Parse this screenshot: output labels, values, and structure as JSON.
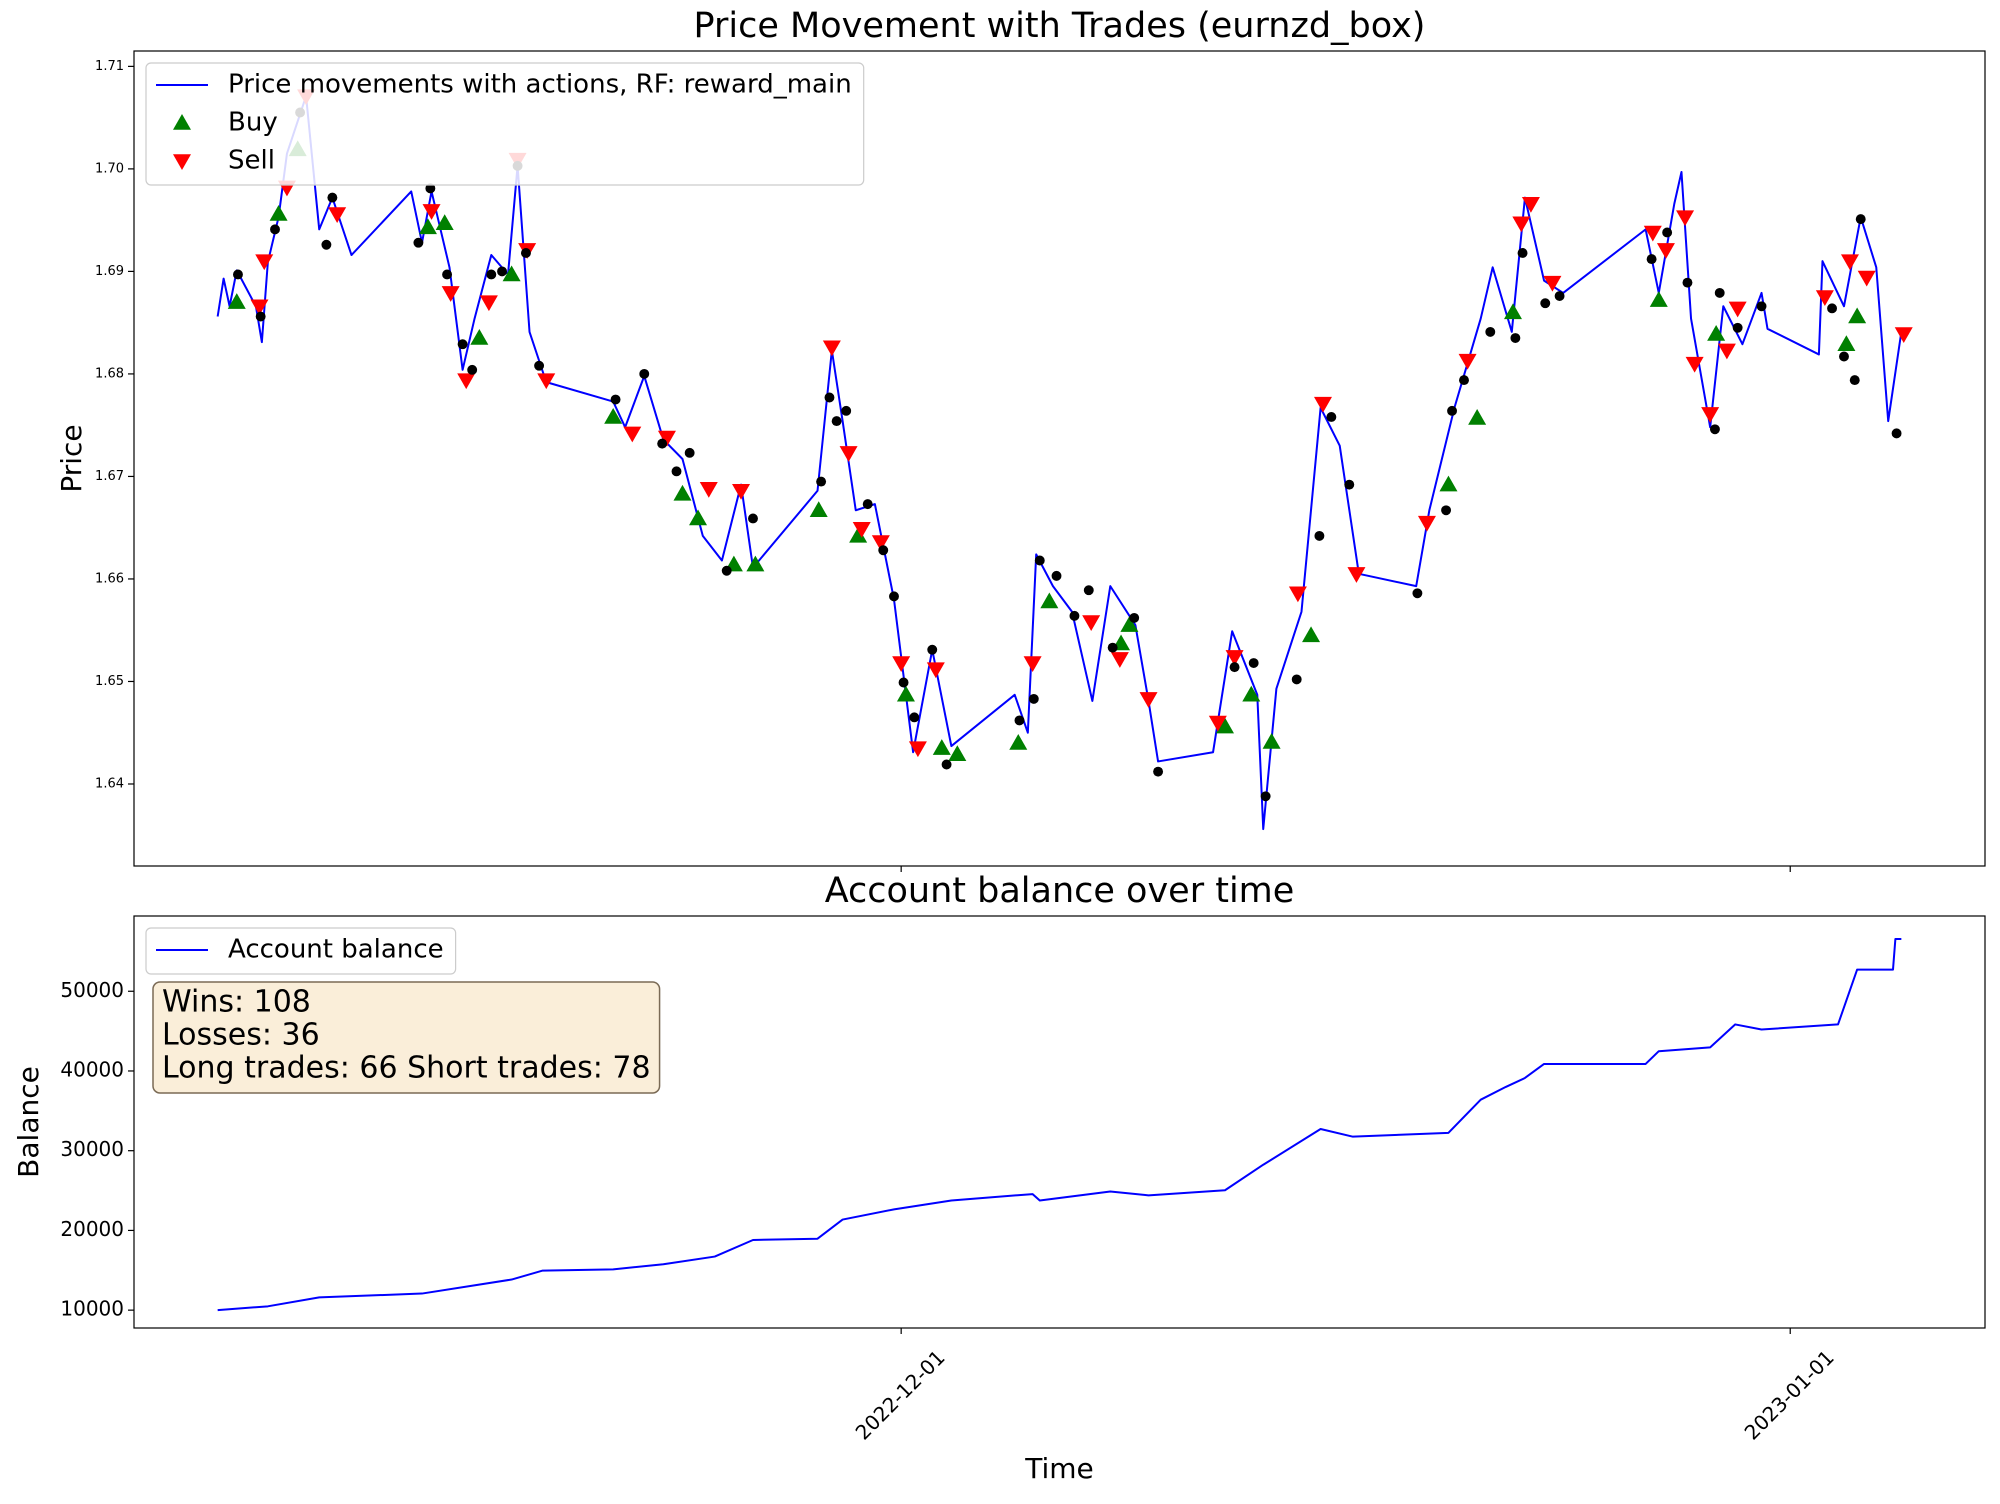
{
  "chart_data": [
    {
      "type": "line",
      "title": "Price Movement with Trades (eurnzd_box)",
      "y_label": "Price",
      "xlim": [
        "2022-11-04 06:00",
        "2023-01-07 19:00"
      ],
      "ylim": [
        1.632,
        1.7115
      ],
      "yticks": [
        1.64,
        1.65,
        1.66,
        1.67,
        1.68,
        1.69,
        {
          "value": 1.7,
          "label": "1.70"
        },
        1.71
      ],
      "legend": "upper left",
      "series": [
        {
          "name": "Price movements with actions, RF: reward_main",
          "color": "#0000ff",
          "x": [
            "2022-11-07 04:00",
            "2022-11-07 09:00",
            "2022-11-07 14:00",
            "2022-11-07 20:00",
            "2022-11-08 12:00",
            "2022-11-08 17:00",
            "2022-11-08 22:00",
            "2022-11-09 07:00",
            "2022-11-09 14:00",
            "2022-11-10 06:00",
            "2022-11-10 17:00",
            "2022-11-11 04:00",
            "2022-11-11 20:00",
            "2022-11-13 22:00",
            "2022-11-14 07:00",
            "2022-11-14 15:00",
            "2022-11-15 06:00",
            "2022-11-15 17:00",
            "2022-11-16 03:00",
            "2022-11-16 17:00",
            "2022-11-17 07:00",
            "2022-11-17 15:00",
            "2022-11-18 01:00",
            "2022-11-18 15:00",
            "2022-11-20 23:00",
            "2022-11-21 09:00",
            "2022-11-22 01:00",
            "2022-11-22 17:00",
            "2022-11-23 09:00",
            "2022-11-24 02:00",
            "2022-11-24 18:00",
            "2022-11-25 10:00",
            "2022-11-25 20:00",
            "2022-11-28 02:00",
            "2022-11-28 14:00",
            "2022-11-28 23:00",
            "2022-11-29 10:00",
            "2022-11-30 02:00",
            "2022-11-30 18:00",
            "2022-12-01 10:00",
            "2022-12-02 02:00",
            "2022-12-02 18:00",
            "2022-12-04 23:00",
            "2022-12-05 10:00",
            "2022-12-05 17:00",
            "2022-12-06 07:00",
            "2022-12-06 23:00",
            "2022-12-07 16:00",
            "2022-12-08 07:00",
            "2022-12-09 04:00",
            "2022-12-09 15:00",
            "2022-12-09 23:00",
            "2022-12-11 21:00",
            "2022-12-12 13:00",
            "2022-12-13 10:00",
            "2022-12-13 15:00",
            "2022-12-14 02:00",
            "2022-12-14 23:00",
            "2022-12-15 15:00",
            "2022-12-16 07:00",
            "2022-12-16 23:00",
            "2022-12-18 23:00",
            "2022-12-19 10:00",
            "2022-12-20 07:00",
            "2022-12-21 05:00",
            "2022-12-21 15:00",
            "2022-12-22 07:00",
            "2022-12-22 18:00",
            "2022-12-23 10:00",
            "2022-12-24 02:00",
            "2022-12-26 23:00",
            "2022-12-27 10:00",
            "2022-12-27 23:00",
            "2022-12-28 05:00",
            "2022-12-28 13:00",
            "2022-12-29 05:00",
            "2022-12-29 16:00",
            "2022-12-30 08:00",
            "2022-12-31 00:00",
            "2022-12-31 05:00",
            "2023-01-02 00:00",
            "2023-01-02 03:00",
            "2023-01-02 21:00",
            "2023-01-03 11:00",
            "2023-01-04 00:00",
            "2023-01-04 10:00",
            "2023-01-04 21:00"
          ],
          "values": [
            1.6856,
            1.6893,
            1.6866,
            1.6901,
            1.6866,
            1.6831,
            1.6909,
            1.6953,
            1.7015,
            1.7071,
            1.6941,
            1.6972,
            1.6916,
            1.6978,
            1.6928,
            1.6978,
            1.6904,
            1.6804,
            1.6854,
            1.6916,
            1.6897,
            1.7003,
            1.6841,
            1.6792,
            1.6773,
            1.6748,
            1.6798,
            1.6736,
            1.6717,
            1.6642,
            1.6618,
            1.6692,
            1.6611,
            1.6686,
            1.6823,
            1.6754,
            1.6667,
            1.6673,
            1.658,
            1.6431,
            1.6531,
            1.6437,
            1.6487,
            1.645,
            1.6624,
            1.6593,
            1.6568,
            1.6481,
            1.6593,
            1.6555,
            1.6481,
            1.6422,
            1.6431,
            1.6549,
            1.6487,
            1.6356,
            1.6493,
            1.6568,
            1.6767,
            1.673,
            1.6605,
            1.6593,
            1.6667,
            1.6767,
            1.6854,
            1.6904,
            1.6841,
            1.6972,
            1.6891,
            1.6879,
            1.6941,
            1.6879,
            1.6966,
            1.6997,
            1.6854,
            1.6748,
            1.6866,
            1.6829,
            1.6879,
            1.6844,
            1.6819,
            1.691,
            1.6866,
            1.6953,
            1.6904,
            1.6754,
            1.6841
          ]
        },
        {
          "name": "Buy",
          "color": "#008000",
          "marker": "triangle-up",
          "x": [
            "2022-11-07 20:00",
            "2022-11-09 07:00",
            "2022-11-09 23:00",
            "2022-11-14 12:00",
            "2022-11-15 02:00",
            "2022-11-16 07:00",
            "2022-11-17 10:00",
            "2022-11-20 23:00",
            "2022-11-23 09:00",
            "2022-11-23 22:00",
            "2022-11-25 04:00",
            "2022-11-25 22:00",
            "2022-11-28 03:00",
            "2022-11-29 12:00",
            "2022-12-01 04:00",
            "2022-12-02 10:00",
            "2022-12-02 23:00",
            "2022-12-05 02:00",
            "2022-12-06 04:00",
            "2022-12-08 16:00",
            "2022-12-08 23:00",
            "2022-12-12 07:00",
            "2022-12-13 05:00",
            "2022-12-13 22:00",
            "2022-12-15 07:00",
            "2022-12-20 02:00",
            "2022-12-21 02:00",
            "2022-12-22 08:00",
            "2022-12-27 10:00",
            "2022-12-29 10:00",
            "2023-01-02 23:00",
            "2023-01-03 08:00"
          ],
          "values": [
            1.687,
            1.6956,
            1.7019,
            1.6943,
            1.6947,
            1.6835,
            1.6897,
            1.6758,
            1.6683,
            1.6659,
            1.6614,
            1.6614,
            1.6667,
            1.6642,
            1.6487,
            1.6435,
            1.6429,
            1.644,
            1.6578,
            1.6537,
            1.6555,
            1.6456,
            1.6487,
            1.6441,
            1.6545,
            1.6692,
            1.6757,
            1.686,
            1.6872,
            1.6839,
            1.6829,
            1.6856
          ]
        },
        {
          "name": "Sell",
          "color": "#ff0000",
          "marker": "triangle-down",
          "x": [
            "2022-11-08 15:00",
            "2022-11-08 19:00",
            "2022-11-09 14:00",
            "2022-11-10 06:00",
            "2022-11-11 08:00",
            "2022-11-14 15:00",
            "2022-11-15 07:00",
            "2022-11-15 20:00",
            "2022-11-16 15:00",
            "2022-11-17 15:00",
            "2022-11-17 23:00",
            "2022-11-18 15:00",
            "2022-11-21 15:00",
            "2022-11-22 20:00",
            "2022-11-24 07:00",
            "2022-11-25 10:00",
            "2022-11-28 14:00",
            "2022-11-29 04:00",
            "2022-11-29 15:00",
            "2022-11-30 07:00",
            "2022-12-01 00:00",
            "2022-12-01 14:00",
            "2022-12-02 05:00",
            "2022-12-05 14:00",
            "2022-12-07 15:00",
            "2022-12-08 15:00",
            "2022-12-09 15:00",
            "2022-12-12 01:00",
            "2022-12-12 15:00",
            "2022-12-14 20:00",
            "2022-12-15 17:00",
            "2022-12-16 21:00",
            "2022-12-19 08:00",
            "2022-12-20 18:00",
            "2022-12-22 15:00",
            "2022-12-22 23:00",
            "2022-12-23 17:00",
            "2022-12-27 05:00",
            "2022-12-27 16:00",
            "2022-12-28 08:00",
            "2022-12-28 16:00",
            "2022-12-29 05:00",
            "2022-12-29 19:00",
            "2022-12-30 04:00",
            "2023-01-02 05:00",
            "2023-01-03 02:00",
            "2023-01-03 16:00",
            "2023-01-04 23:00"
          ],
          "values": [
            1.6866,
            1.691,
            1.6982,
            1.7071,
            1.6956,
            1.6959,
            1.6879,
            1.6794,
            1.687,
            1.7009,
            1.6921,
            1.6794,
            1.6742,
            1.6738,
            1.6688,
            1.6686,
            1.6826,
            1.6723,
            1.6649,
            1.6636,
            1.6518,
            1.6435,
            1.6512,
            1.6518,
            1.6558,
            1.6522,
            1.6483,
            1.646,
            1.6524,
            1.6586,
            1.6771,
            1.6605,
            1.6655,
            1.6813,
            1.6947,
            1.6966,
            1.6889,
            1.6938,
            1.6921,
            1.6953,
            1.681,
            1.6761,
            1.6823,
            1.6864,
            1.6875,
            1.691,
            1.6894,
            1.6839
          ]
        },
        {
          "color": "#000000",
          "marker": "circle",
          "x": [
            "2022-11-07 21:00",
            "2022-11-08 16:00",
            "2022-11-09 04:00",
            "2022-11-10 01:00",
            "2022-11-10 23:00",
            "2022-11-11 04:00",
            "2022-11-14 04:00",
            "2022-11-14 14:00",
            "2022-11-15 04:00",
            "2022-11-15 17:00",
            "2022-11-16 01:00",
            "2022-11-16 17:00",
            "2022-11-17 02:00",
            "2022-11-17 15:00",
            "2022-11-17 22:00",
            "2022-11-18 09:00",
            "2022-11-21 01:00",
            "2022-11-22 01:00",
            "2022-11-22 16:00",
            "2022-11-23 04:00",
            "2022-11-23 15:00",
            "2022-11-24 22:00",
            "2022-11-25 20:00",
            "2022-11-28 05:00",
            "2022-11-28 12:00",
            "2022-11-28 18:00",
            "2022-11-29 02:00",
            "2022-11-29 20:00",
            "2022-11-30 09:00",
            "2022-11-30 18:00",
            "2022-12-01 02:00",
            "2022-12-01 11:00",
            "2022-12-02 02:00",
            "2022-12-02 14:00",
            "2022-12-05 03:00",
            "2022-12-05 15:00",
            "2022-12-05 20:00",
            "2022-12-06 10:00",
            "2022-12-07 01:00",
            "2022-12-07 13:00",
            "2022-12-08 09:00",
            "2022-12-09 03:00",
            "2022-12-09 23:00",
            "2022-12-12 15:00",
            "2022-12-13 07:00",
            "2022-12-13 17:00",
            "2022-12-14 19:00",
            "2022-12-15 14:00",
            "2022-12-16 00:00",
            "2022-12-16 15:00",
            "2022-12-19 00:00",
            "2022-12-20 00:00",
            "2022-12-20 05:00",
            "2022-12-20 15:00",
            "2022-12-21 13:00",
            "2022-12-22 10:00",
            "2022-12-22 16:00",
            "2022-12-23 11:00",
            "2022-12-23 23:00",
            "2022-12-27 04:00",
            "2022-12-27 17:00",
            "2022-12-28 10:00",
            "2022-12-29 09:00",
            "2022-12-29 13:00",
            "2022-12-30 04:00",
            "2022-12-31 00:00",
            "2023-01-02 11:00",
            "2023-01-02 21:00",
            "2023-01-03 06:00",
            "2023-01-03 11:00",
            "2023-01-04 17:00"
          ],
          "values": [
            1.6897,
            1.6856,
            1.6941,
            1.7055,
            1.6926,
            1.6972,
            1.6928,
            1.6981,
            1.6897,
            1.6829,
            1.6804,
            1.6897,
            1.69,
            1.7003,
            1.6918,
            1.6808,
            1.6775,
            1.68,
            1.6732,
            1.6705,
            1.6723,
            1.6608,
            1.6659,
            1.6695,
            1.6777,
            1.6754,
            1.6764,
            1.6673,
            1.6628,
            1.6583,
            1.6499,
            1.6465,
            1.6531,
            1.6419,
            1.6462,
            1.6483,
            1.6618,
            1.6603,
            1.6564,
            1.6589,
            1.6533,
            1.6562,
            1.6412,
            1.6514,
            1.6518,
            1.6388,
            1.6502,
            1.6642,
            1.6758,
            1.6692,
            1.6586,
            1.6667,
            1.6764,
            1.6794,
            1.6841,
            1.6835,
            1.6918,
            1.6869,
            1.6876,
            1.6912,
            1.6938,
            1.6889,
            1.6746,
            1.6879,
            1.6845,
            1.6866,
            1.6864,
            1.6817,
            1.6794,
            1.6951,
            1.6742
          ]
        }
      ]
    },
    {
      "type": "line",
      "title": "Account balance over time",
      "y_label": "Balance",
      "x_label": "Time",
      "xlim": [
        "2022-11-04 06:00",
        "2023-01-07 19:00"
      ],
      "xticks": [
        "2022-12-01",
        "2023-01-01"
      ],
      "ylim": [
        7760,
        59440
      ],
      "yticks": [
        10000,
        20000,
        30000,
        40000,
        50000
      ],
      "legend": "upper left",
      "annotation": [
        "Wins: 108",
        "Losses: 36",
        "Long trades: 66 Short trades: 78"
      ],
      "series": [
        {
          "name": "Account balance",
          "color": "#0000ff",
          "x": [
            "2022-11-07 04:00",
            "2022-11-08 22:00",
            "2022-11-10 17:00",
            "2022-11-14 07:00",
            "2022-11-17 10:00",
            "2022-11-18 12:00",
            "2022-11-20 23:00",
            "2022-11-22 17:00",
            "2022-11-24 12:00",
            "2022-11-25 20:00",
            "2022-11-28 02:00",
            "2022-11-28 23:00",
            "2022-11-30 18:00",
            "2022-12-02 18:00",
            "2022-12-05 14:00",
            "2022-12-05 20:00",
            "2022-12-08 07:00",
            "2022-12-09 15:00",
            "2022-12-12 07:00",
            "2022-12-13 15:00",
            "2022-12-15 15:00",
            "2022-12-16 18:00",
            "2022-12-20 02:00",
            "2022-12-21 05:00",
            "2022-12-22 02:00",
            "2022-12-22 18:00",
            "2022-12-23 10:00",
            "2022-12-26 23:00",
            "2022-12-27 10:00",
            "2022-12-29 05:00",
            "2022-12-30 02:00",
            "2022-12-31 00:00",
            "2023-01-02 16:00",
            "2023-01-03 08:00",
            "2023-01-04 14:00",
            "2023-01-04 16:00",
            "2023-01-04 21:00"
          ],
          "values": [
            10000,
            10480,
            11600,
            12080,
            13840,
            14960,
            15120,
            15760,
            16720,
            18800,
            18960,
            21360,
            22640,
            23760,
            24560,
            23760,
            24880,
            24400,
            25040,
            28240,
            32720,
            31760,
            32240,
            36400,
            38000,
            39120,
            40880,
            40880,
            42480,
            42960,
            45840,
            45200,
            45840,
            52720,
            52720,
            56560,
            56560
          ]
        }
      ]
    }
  ]
}
